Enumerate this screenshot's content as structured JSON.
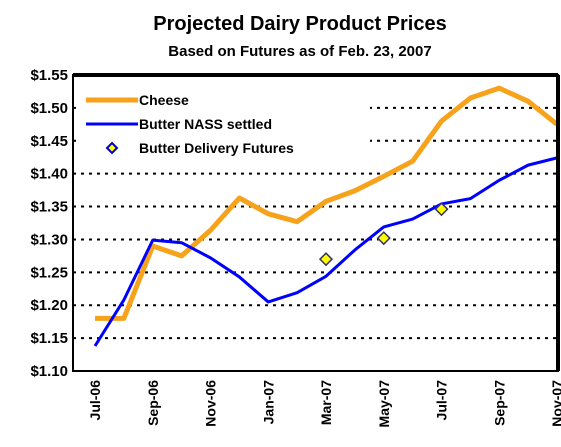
{
  "chart_data": {
    "type": "line",
    "title": "Projected Dairy Product Prices",
    "subtitle": "Based on Futures as of Feb. 23, 2007",
    "categories": [
      "Jul-06",
      null,
      "Sep-06",
      null,
      "Nov-06",
      null,
      "Jan-07",
      null,
      "Mar-07",
      null,
      "May-07",
      null,
      "Jul-07",
      null,
      "Sep-07",
      null,
      "Nov-07"
    ],
    "series": [
      {
        "name": "Cheese",
        "color": "#f7a21b",
        "style": "line",
        "values": [
          1.18,
          1.18,
          1.29,
          1.275,
          1.314,
          1.363,
          1.339,
          1.327,
          1.358,
          1.374,
          1.396,
          1.419,
          1.48,
          1.515,
          1.53,
          1.51,
          1.475
        ]
      },
      {
        "name": "Butter NASS settled",
        "color": "#0000ff",
        "style": "line",
        "values": [
          1.138,
          1.208,
          1.299,
          1.295,
          1.272,
          1.243,
          1.205,
          1.219,
          1.244,
          1.284,
          1.319,
          1.331,
          1.354,
          1.362,
          1.39,
          1.413,
          1.424
        ]
      },
      {
        "name": "Butter Delivery Futures",
        "color": "#ffff00",
        "style": "diamond",
        "values": [
          null,
          null,
          null,
          null,
          null,
          null,
          null,
          null,
          1.27,
          null,
          1.302,
          null,
          1.346,
          null,
          null,
          null,
          null
        ]
      }
    ],
    "ylim": [
      1.1,
      1.55
    ],
    "yticks": [
      {
        "value": 1.1,
        "label": "$1.10"
      },
      {
        "value": 1.15,
        "label": "$1.15"
      },
      {
        "value": 1.2,
        "label": "$1.20"
      },
      {
        "value": 1.25,
        "label": "$1.25"
      },
      {
        "value": 1.3,
        "label": "$1.30"
      },
      {
        "value": 1.35,
        "label": "$1.35"
      },
      {
        "value": 1.4,
        "label": "$1.40"
      },
      {
        "value": 1.45,
        "label": "$1.45"
      },
      {
        "value": 1.5,
        "label": "$1.50"
      },
      {
        "value": 1.55,
        "label": "$1.55"
      }
    ],
    "grid": true,
    "legend": "top-left"
  }
}
